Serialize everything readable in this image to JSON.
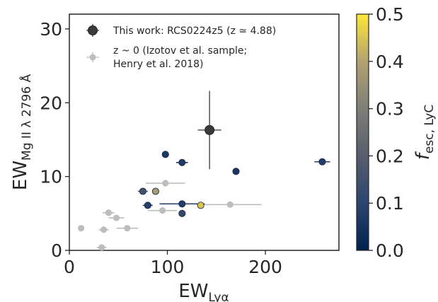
{
  "chart_data": {
    "type": "scatter",
    "xlabel": "EW",
    "xlabel_sub": "Lyα",
    "ylabel": "EW",
    "ylabel_sub": "Mg II λ 2796 Å",
    "xlim": [
      0,
      275
    ],
    "ylim": [
      0,
      32
    ],
    "xticks": [
      "0",
      "100",
      "200"
    ],
    "yticks": [
      "0",
      "10",
      "20",
      "30"
    ],
    "grid": false,
    "legend_position": "top-left",
    "colorbar": {
      "label": "f",
      "label_sub": "esc, LyC",
      "range": [
        0,
        0.5
      ],
      "ticks": [
        "0.0",
        "0.1",
        "0.2",
        "0.3",
        "0.4",
        "0.5"
      ],
      "colormap": "cividis"
    },
    "series": [
      {
        "name": "This work: RCS0224z5 (z ≃ 4.88)",
        "color": "#3a3a3a",
        "points": [
          {
            "x": 143,
            "y": 16.3,
            "xerr": 12,
            "yerr": 5.3
          }
        ]
      },
      {
        "name": "z ~ 0 (Izotov et al. sample; Henry et al. 2018)",
        "undetected_color": "#bdbdbd",
        "points": [
          {
            "x": 12,
            "y": 3.0,
            "xerr": 0,
            "f": null
          },
          {
            "x": 33,
            "y": 0.4,
            "xerr": 5,
            "f": null
          },
          {
            "x": 35,
            "y": 2.8,
            "xerr": 5,
            "f": null
          },
          {
            "x": 40,
            "y": 5.1,
            "xerr": 6,
            "f": null
          },
          {
            "x": 48,
            "y": 4.4,
            "xerr": 8,
            "f": null
          },
          {
            "x": 59,
            "y": 3.0,
            "xerr": 11,
            "f": null
          },
          {
            "x": 98,
            "y": 9.1,
            "xerr": 20,
            "f": null
          },
          {
            "x": 95,
            "y": 5.4,
            "xerr": 15,
            "f": null
          },
          {
            "x": 164,
            "y": 6.2,
            "xerr": 32,
            "f": null
          },
          {
            "x": 98,
            "y": 13.0,
            "xerr": 0,
            "f": 0.065
          },
          {
            "x": 115,
            "y": 11.9,
            "xerr": 6,
            "f": 0.07
          },
          {
            "x": 170,
            "y": 10.7,
            "xerr": 0,
            "f": 0.06
          },
          {
            "x": 258,
            "y": 12.0,
            "xerr": 8,
            "f": 0.075
          },
          {
            "x": 75,
            "y": 8.0,
            "xerr": 5,
            "f": 0.15
          },
          {
            "x": 88,
            "y": 8.0,
            "xerr": 0,
            "f": 0.38
          },
          {
            "x": 80,
            "y": 6.1,
            "xerr": 5,
            "f": 0.085
          },
          {
            "x": 115,
            "y": 6.3,
            "xerr": 23,
            "f": 0.08
          },
          {
            "x": 134,
            "y": 6.1,
            "xerr": 0,
            "f": 0.45
          },
          {
            "x": 115,
            "y": 5.0,
            "xerr": 0,
            "f": 0.12
          }
        ]
      }
    ]
  }
}
